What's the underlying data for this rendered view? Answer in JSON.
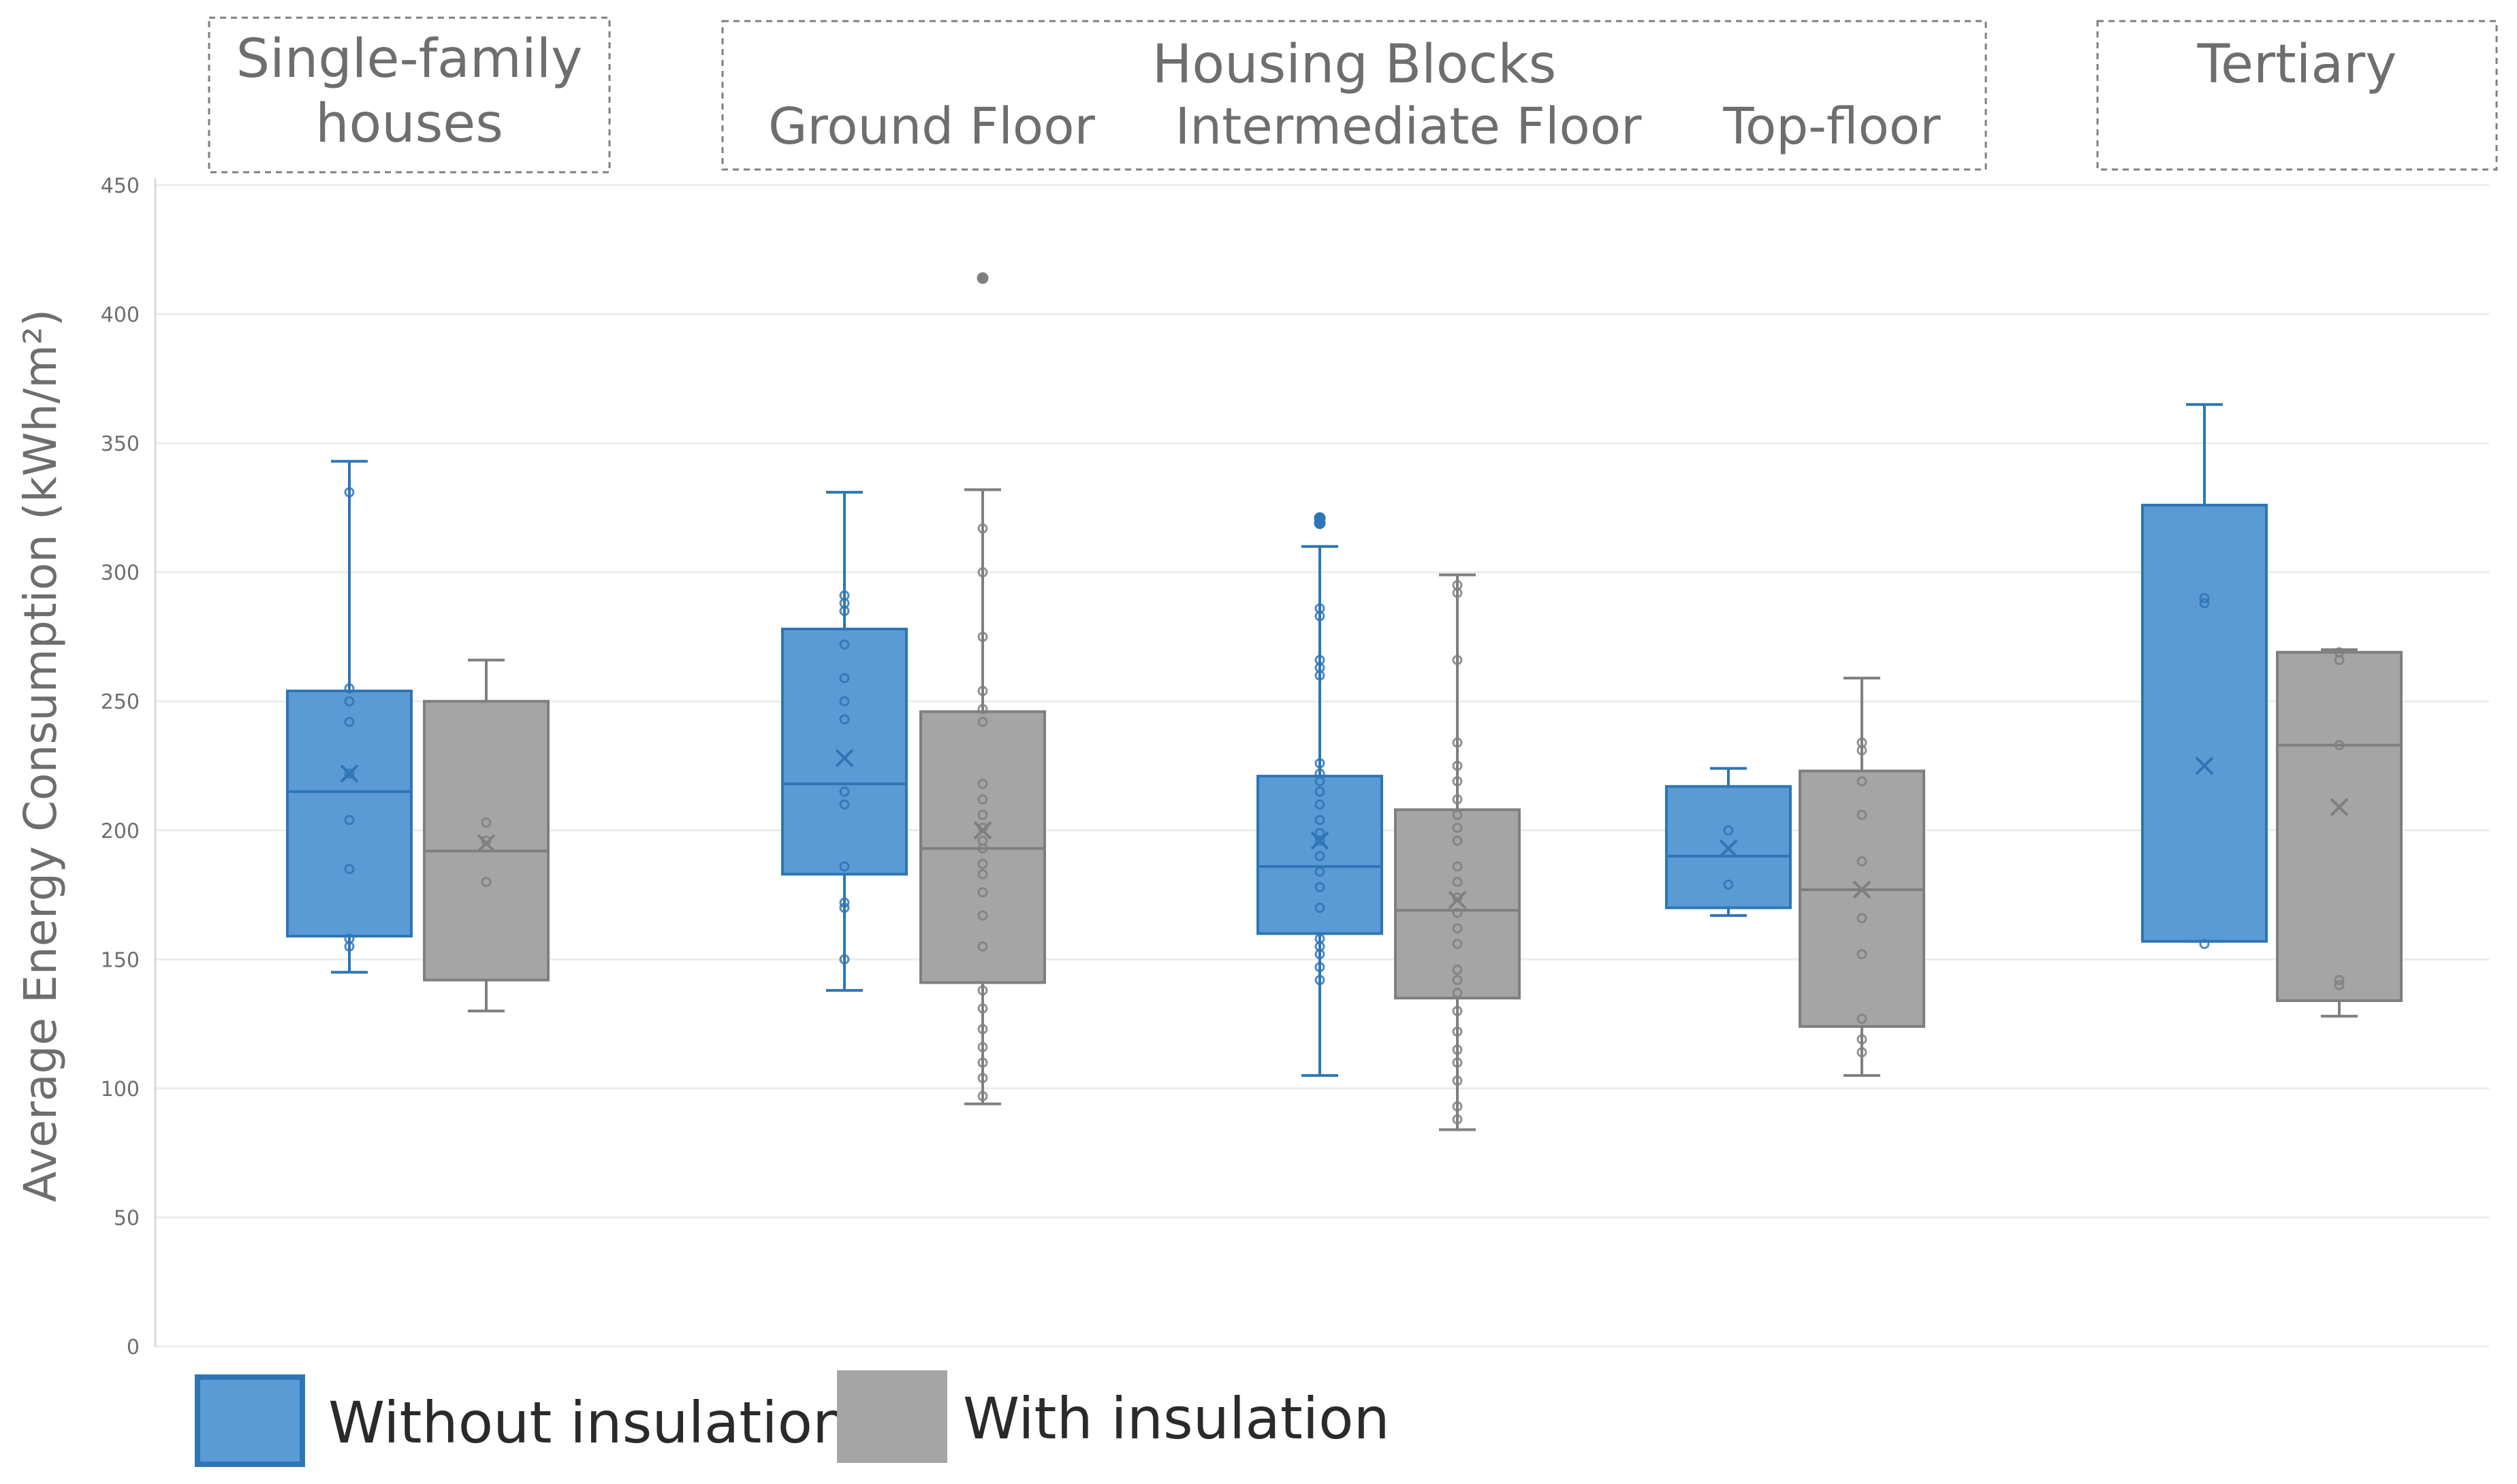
{
  "chart_data": {
    "type": "boxplot",
    "ylabel": "Average Energy Consumption (kWh/m²)",
    "ylim": [
      0,
      450
    ],
    "yticks": [
      0,
      50,
      100,
      150,
      200,
      250,
      300,
      350,
      400,
      450
    ],
    "grid": true,
    "groups": [
      {
        "key": "sfh",
        "label": "Single-family houses",
        "label_lines": [
          "Single-family",
          "houses"
        ],
        "sublabels": []
      },
      {
        "key": "hb",
        "label": "Housing Blocks",
        "label_lines": [
          "Housing Blocks"
        ],
        "sublabels": [
          "Ground Floor",
          "Intermediate Floor",
          "Top-floor"
        ]
      },
      {
        "key": "ter",
        "label": "Tertiary",
        "label_lines": [
          "Tertiary"
        ],
        "sublabels": []
      }
    ],
    "colors": {
      "without": {
        "fill": "#5b9bd5",
        "stroke": "#2e75b6"
      },
      "with": {
        "fill": "#a5a5a5",
        "stroke": "#7f7f7f"
      }
    },
    "legend": {
      "position": "bottom-left",
      "items": [
        {
          "series": "without",
          "label": "Without insulation"
        },
        {
          "series": "with",
          "label": "With insulation"
        }
      ]
    },
    "boxes": [
      {
        "category": "Single-family houses",
        "series": "without",
        "whisker_low": 145,
        "q1": 159,
        "median": 215,
        "q3": 254,
        "whisker_high": 343,
        "mean": 222,
        "points": [
          155,
          158,
          185,
          204,
          222,
          242,
          250,
          255,
          331
        ]
      },
      {
        "category": "Single-family houses",
        "series": "with",
        "whisker_low": 130,
        "q1": 142,
        "median": 192,
        "q3": 250,
        "whisker_high": 266,
        "mean": 195,
        "points": [
          180,
          196,
          203
        ]
      },
      {
        "category": "Ground Floor",
        "series": "without",
        "whisker_low": 138,
        "q1": 183,
        "median": 218,
        "q3": 278,
        "whisker_high": 331,
        "mean": 228,
        "points": [
          150,
          170,
          172,
          186,
          210,
          215,
          243,
          250,
          259,
          272,
          285,
          288,
          291
        ]
      },
      {
        "category": "Ground Floor",
        "series": "with",
        "whisker_low": 94,
        "q1": 141,
        "median": 193,
        "q3": 246,
        "whisker_high": 332,
        "mean": 200,
        "points": [
          97,
          104,
          110,
          116,
          123,
          131,
          138,
          155,
          167,
          176,
          183,
          187,
          193,
          196,
          201,
          206,
          212,
          218,
          242,
          247,
          254,
          275,
          300,
          317,
          414
        ],
        "outliers": [
          414
        ]
      },
      {
        "category": "Intermediate Floor",
        "series": "without",
        "whisker_low": 105,
        "q1": 160,
        "median": 186,
        "q3": 221,
        "whisker_high": 310,
        "mean": 196,
        "points": [
          142,
          147,
          152,
          155,
          158,
          170,
          178,
          184,
          190,
          196,
          199,
          204,
          210,
          215,
          219,
          222,
          226,
          260,
          263,
          266,
          283,
          286,
          319,
          321
        ],
        "outliers": [
          319,
          321
        ]
      },
      {
        "category": "Intermediate Floor",
        "series": "with",
        "whisker_low": 84,
        "q1": 135,
        "median": 169,
        "q3": 208,
        "whisker_high": 299,
        "mean": 173,
        "points": [
          88,
          93,
          103,
          110,
          115,
          122,
          130,
          137,
          142,
          146,
          156,
          162,
          168,
          174,
          180,
          186,
          196,
          201,
          206,
          212,
          219,
          225,
          234,
          266,
          292,
          295
        ]
      },
      {
        "category": "Top-floor",
        "series": "without",
        "whisker_low": 167,
        "q1": 170,
        "median": 190,
        "q3": 217,
        "whisker_high": 224,
        "mean": 193,
        "points": [
          179,
          200
        ]
      },
      {
        "category": "Top-floor",
        "series": "with",
        "whisker_low": 105,
        "q1": 124,
        "median": 177,
        "q3": 223,
        "whisker_high": 259,
        "mean": 177,
        "points": [
          114,
          119,
          127,
          152,
          166,
          188,
          206,
          219,
          231,
          234
        ]
      },
      {
        "category": "Tertiary",
        "series": "without",
        "whisker_low": 157,
        "q1": 157,
        "median": 326,
        "q3": 326,
        "whisker_high": 365,
        "mean": 225,
        "points": [
          156,
          288,
          290
        ]
      },
      {
        "category": "Tertiary",
        "series": "with",
        "whisker_low": 128,
        "q1": 134,
        "median": 233,
        "q3": 269,
        "whisker_high": 270,
        "mean": 209,
        "points": [
          140,
          142,
          233,
          266,
          269
        ]
      }
    ]
  }
}
